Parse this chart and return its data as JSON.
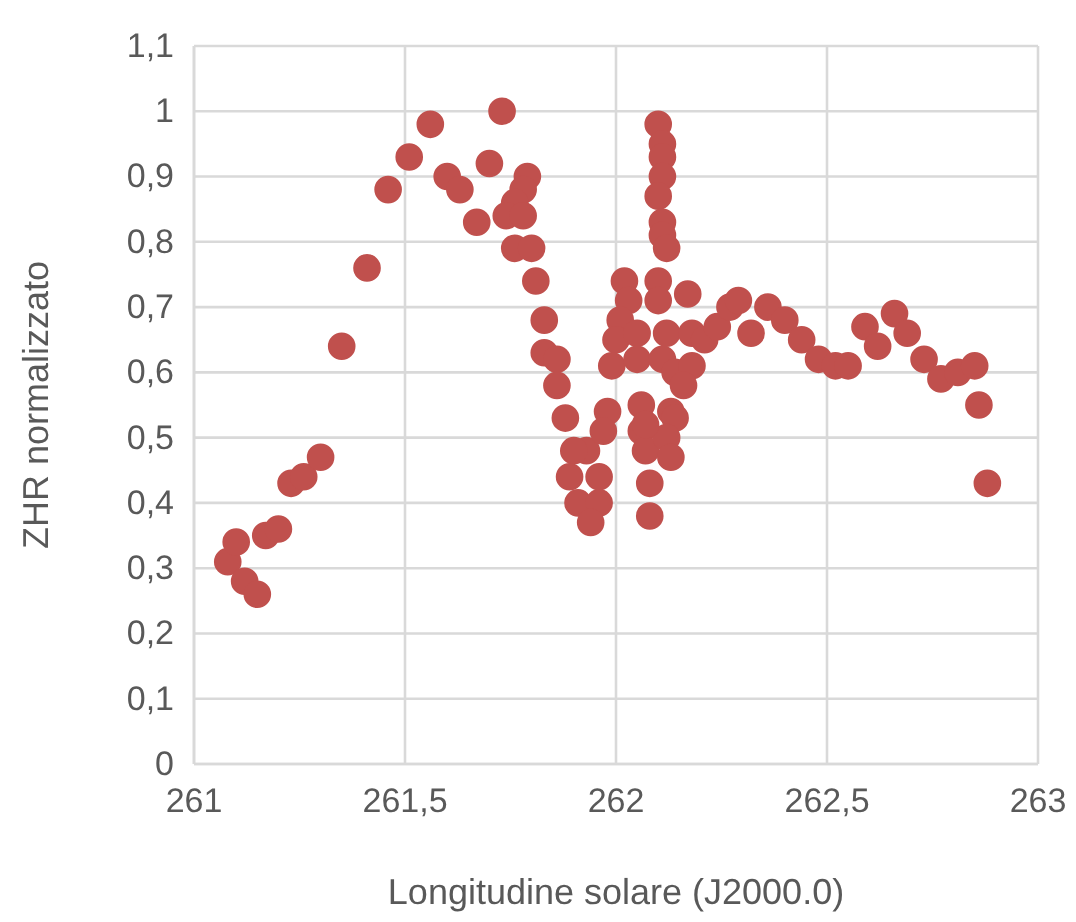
{
  "chart_data": {
    "type": "scatter",
    "xlabel": "Longitudine solare (J2000.0)",
    "ylabel": "ZHR normalizzato",
    "xlim": [
      261,
      263
    ],
    "xticks": [
      261,
      {
        "value": 261.5,
        "label": "261,5"
      },
      262,
      {
        "value": 262.5,
        "label": "262,5"
      },
      263
    ],
    "ylim": [
      0,
      1.1
    ],
    "yticks": [
      0,
      {
        "value": 0.1,
        "label": "0,1"
      },
      {
        "value": 0.2,
        "label": "0,2"
      },
      {
        "value": 0.3,
        "label": "0,3"
      },
      {
        "value": 0.4,
        "label": "0,4"
      },
      {
        "value": 0.5,
        "label": "0,5"
      },
      {
        "value": 0.6,
        "label": "0,6"
      },
      {
        "value": 0.7,
        "label": "0,7"
      },
      {
        "value": 0.8,
        "label": "0,8"
      },
      {
        "value": 0.9,
        "label": "0,9"
      },
      1,
      {
        "value": 1.1,
        "label": "1,1"
      }
    ],
    "grid": true,
    "marker": "circle",
    "series": [
      {
        "color": "#c0504d",
        "x": [
          261.08,
          261.1,
          261.12,
          261.15,
          261.17,
          261.2,
          261.23,
          261.26,
          261.3,
          261.35,
          261.41,
          261.46,
          261.51,
          261.56,
          261.6,
          261.63,
          261.67,
          261.7,
          261.73,
          261.79,
          261.78,
          261.76,
          261.74,
          261.78,
          261.76,
          261.8,
          261.81,
          261.83,
          261.83,
          261.86,
          261.86,
          261.88,
          261.93,
          261.9,
          261.89,
          261.96,
          261.91,
          261.96,
          261.94,
          261.98,
          261.97,
          262.02,
          262.03,
          262.01,
          262,
          262.05,
          261.99,
          262.05,
          262.06,
          262.06,
          262.07,
          262.08,
          262.08,
          262.1,
          262.11,
          262.11,
          262.11,
          262.1,
          262.11,
          262.11,
          262.12,
          262.1,
          262.1,
          262.12,
          262.11,
          262.14,
          262.13,
          262.14,
          262.12,
          262.13,
          262.07,
          262.17,
          262.18,
          262.18,
          262.16,
          262.21,
          262.24,
          262.27,
          262.29,
          262.32,
          262.36,
          262.4,
          262.44,
          262.48,
          262.52,
          262.55,
          262.59,
          262.62,
          262.66,
          262.69,
          262.73,
          262.77,
          262.81,
          262.85,
          262.86,
          262.88
        ],
        "values": [
          0.31,
          0.34,
          0.28,
          0.26,
          0.35,
          0.36,
          0.43,
          0.44,
          0.47,
          0.64,
          0.76,
          0.88,
          0.93,
          0.98,
          0.9,
          0.88,
          0.83,
          0.92,
          1,
          0.9,
          0.88,
          0.86,
          0.84,
          0.84,
          0.79,
          0.79,
          0.74,
          0.68,
          0.63,
          0.62,
          0.58,
          0.53,
          0.48,
          0.48,
          0.44,
          0.44,
          0.4,
          0.4,
          0.37,
          0.54,
          0.51,
          0.74,
          0.71,
          0.68,
          0.65,
          0.66,
          0.61,
          0.62,
          0.55,
          0.51,
          0.48,
          0.38,
          0.43,
          0.98,
          0.95,
          0.93,
          0.9,
          0.87,
          0.83,
          0.81,
          0.79,
          0.74,
          0.71,
          0.66,
          0.62,
          0.6,
          0.54,
          0.53,
          0.5,
          0.47,
          0.52,
          0.72,
          0.66,
          0.61,
          0.58,
          0.65,
          0.67,
          0.7,
          0.71,
          0.66,
          0.7,
          0.68,
          0.65,
          0.62,
          0.61,
          0.61,
          0.67,
          0.64,
          0.69,
          0.66,
          0.62,
          0.59,
          0.6,
          0.61,
          0.55,
          0.43
        ]
      }
    ]
  }
}
